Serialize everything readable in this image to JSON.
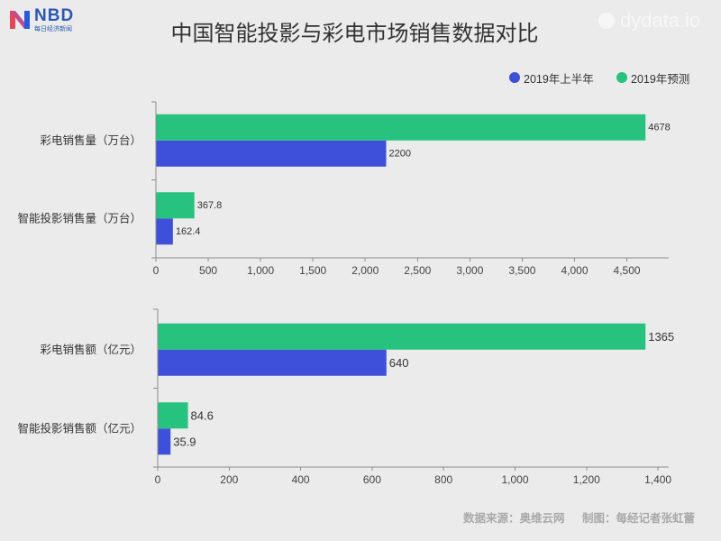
{
  "logo": {
    "name": "NBD",
    "subtitle": "每日经济新闻"
  },
  "watermark": "dydata.io",
  "title": "中国智能投影与彩电市场销售数据对比",
  "footer": {
    "source": "数据来源：奥维云网",
    "credit": "制图：每经记者张虹蕾"
  },
  "background": "#ebebeb",
  "chart_data": [
    {
      "type": "bar",
      "orientation": "horizontal",
      "categories": [
        "彩电销售量（万台）",
        "智能投影销售量（万台）"
      ],
      "series": [
        {
          "name": "2019年上半年",
          "values": [
            2200,
            162.4
          ],
          "color": "#3e4fd9"
        },
        {
          "name": "2019年预测",
          "values": [
            4678,
            367.8
          ],
          "color": "#28c27f"
        }
      ],
      "xlim": [
        0,
        4900
      ],
      "xticks": [
        0,
        500,
        1000,
        1500,
        2000,
        2500,
        3000,
        3500,
        4000,
        4500
      ],
      "xtick_labels": [
        "0",
        "500",
        "1,000",
        "1,500",
        "2,000",
        "2,500",
        "3,000",
        "3,500",
        "4,000",
        "4,500"
      ],
      "data_labels": true,
      "grid": false,
      "legend": "top-right"
    },
    {
      "type": "bar",
      "orientation": "horizontal",
      "categories": [
        "彩电销售额（亿元）",
        "智能投影销售额（亿元）"
      ],
      "series": [
        {
          "name": "2019年上半年",
          "values": [
            640,
            35.9
          ],
          "color": "#3e4fd9"
        },
        {
          "name": "2019年预测",
          "values": [
            1365,
            84.6
          ],
          "color": "#28c27f"
        }
      ],
      "xlim": [
        0,
        1430
      ],
      "xticks": [
        0,
        200,
        400,
        600,
        800,
        1000,
        1200,
        1400
      ],
      "xtick_labels": [
        "0",
        "200",
        "400",
        "600",
        "800",
        "1,000",
        "1,200",
        "1,400"
      ],
      "data_labels": true,
      "grid": false
    }
  ]
}
